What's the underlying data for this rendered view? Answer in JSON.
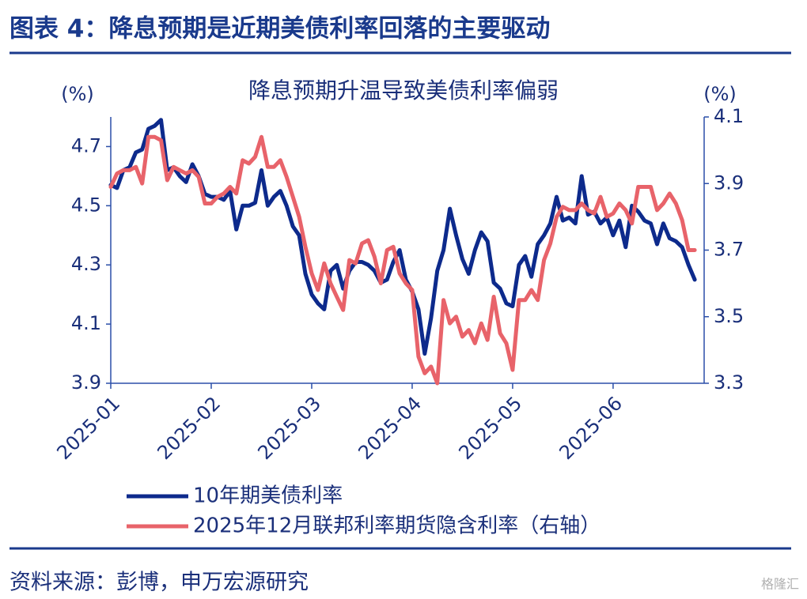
{
  "header": {
    "title": "图表 4：降息预期是近期美债利率回落的主要驱动"
  },
  "chart_data": {
    "type": "line",
    "title": "降息预期升温导致美债利率偏弱",
    "y_label": "(%)",
    "y2_label": "(%)",
    "categories": [
      "2025-01",
      null,
      null,
      null,
      null,
      null,
      null,
      null,
      null,
      null,
      null,
      null,
      null,
      null,
      null,
      null,
      "2025-02",
      null,
      null,
      null,
      null,
      null,
      null,
      null,
      null,
      null,
      null,
      null,
      null,
      null,
      null,
      null,
      "2025-03",
      null,
      null,
      null,
      null,
      null,
      null,
      null,
      null,
      null,
      null,
      null,
      null,
      null,
      null,
      null,
      "2025-04",
      null,
      null,
      null,
      null,
      null,
      null,
      null,
      null,
      null,
      null,
      null,
      null,
      null,
      null,
      null,
      "2025-05",
      null,
      null,
      null,
      null,
      null,
      null,
      null,
      null,
      null,
      null,
      null,
      null,
      null,
      null,
      null,
      "2025-06",
      null,
      null,
      null,
      null,
      null,
      null,
      null,
      null,
      null,
      null,
      null,
      null,
      null
    ],
    "series": [
      {
        "name": "10年期美债利率",
        "color": "#0d2a8c",
        "axis": "y",
        "values": [
          4.57,
          4.56,
          4.62,
          4.63,
          4.68,
          4.69,
          4.76,
          4.77,
          4.79,
          4.62,
          4.63,
          4.6,
          4.58,
          4.64,
          4.6,
          4.54,
          4.53,
          4.53,
          4.52,
          4.55,
          4.42,
          4.5,
          4.5,
          4.51,
          4.62,
          4.5,
          4.53,
          4.55,
          4.5,
          4.43,
          4.4,
          4.27,
          4.2,
          4.17,
          4.15,
          4.28,
          4.3,
          4.22,
          4.28,
          4.31,
          4.31,
          4.3,
          4.28,
          4.24,
          4.25,
          4.31,
          4.35,
          4.25,
          4.21,
          4.15,
          4.0,
          4.12,
          4.28,
          4.35,
          4.49,
          4.4,
          4.32,
          4.27,
          4.35,
          4.41,
          4.38,
          4.24,
          4.22,
          4.17,
          4.16,
          4.3,
          4.33,
          4.26,
          4.37,
          4.4,
          4.44,
          4.53,
          4.45,
          4.46,
          4.44,
          4.6,
          4.47,
          4.48,
          4.44,
          4.46,
          4.4,
          4.45,
          4.36,
          4.5,
          4.48,
          4.45,
          4.44,
          4.37,
          4.44,
          4.39,
          4.38,
          4.36,
          4.3,
          4.25
        ]
      },
      {
        "name": "2025年12月联邦利率期货隐含利率（右轴）",
        "color": "#e8636a",
        "axis": "y2",
        "values": [
          3.89,
          3.93,
          3.94,
          3.94,
          3.95,
          3.9,
          4.04,
          4.04,
          4.03,
          3.91,
          3.95,
          3.94,
          3.93,
          3.94,
          3.92,
          3.84,
          3.84,
          3.86,
          3.87,
          3.89,
          3.87,
          3.97,
          3.96,
          3.98,
          4.04,
          3.95,
          3.95,
          3.97,
          3.92,
          3.86,
          3.8,
          3.71,
          3.63,
          3.58,
          3.66,
          3.6,
          3.56,
          3.52,
          3.67,
          3.66,
          3.72,
          3.73,
          3.68,
          3.6,
          3.7,
          3.71,
          3.63,
          3.6,
          3.58,
          3.38,
          3.33,
          3.35,
          3.3,
          3.55,
          3.48,
          3.5,
          3.44,
          3.46,
          3.42,
          3.48,
          3.43,
          3.56,
          3.45,
          3.42,
          3.34,
          3.55,
          3.55,
          3.58,
          3.55,
          3.67,
          3.72,
          3.8,
          3.83,
          3.82,
          3.82,
          3.84,
          3.82,
          3.81,
          3.86,
          3.8,
          3.81,
          3.84,
          3.82,
          3.78,
          3.89,
          3.89,
          3.89,
          3.82,
          3.84,
          3.87,
          3.84,
          3.79,
          3.7,
          3.7
        ]
      }
    ],
    "ylim": [
      3.9,
      4.8
    ],
    "yticks": [
      3.9,
      4.1,
      4.3,
      4.5,
      4.7
    ],
    "y2lim": [
      3.3,
      4.1
    ],
    "y2ticks": [
      3.3,
      3.5,
      3.7,
      3.9,
      4.1
    ],
    "axis_color": "#2b4fa8",
    "text_color": "#1a2f7a"
  },
  "footer": {
    "source": "资料来源：彭博，申万宏源研究",
    "watermark": "格隆汇"
  }
}
